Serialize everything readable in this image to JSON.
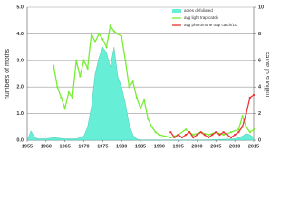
{
  "chart_data": {
    "type": "line",
    "y_label": "numbers of moths",
    "y2_label": "millions of acres",
    "xlim": [
      1955,
      2015
    ],
    "xticks": [
      1955,
      1960,
      1965,
      1970,
      1975,
      1980,
      1985,
      1990,
      1995,
      2000,
      2005,
      2010,
      2015
    ],
    "ylim": [
      0,
      5
    ],
    "yticks": [
      {
        "value": 0,
        "label": "0.0"
      },
      {
        "value": 1,
        "label": "1.0"
      },
      {
        "value": 2,
        "label": "2.0"
      },
      {
        "value": 3,
        "label": "3.0"
      },
      {
        "value": 4,
        "label": "4.0"
      },
      {
        "value": 5,
        "label": "5.0"
      }
    ],
    "y2lim": [
      0,
      10
    ],
    "y2ticks": [
      0,
      2,
      4,
      6,
      8,
      10
    ],
    "grid": true,
    "legend": "upper right",
    "series": [
      {
        "name": "acres defoliated",
        "color": "#66eed6",
        "kind": "area",
        "axis": "y2",
        "x": [
          1955,
          1956,
          1957,
          1958,
          1960,
          1962,
          1965,
          1968,
          1970,
          1971,
          1972,
          1973,
          1974,
          1975,
          1976,
          1977,
          1978,
          1979,
          1980,
          1981,
          1982,
          1983,
          1984,
          1985,
          1990,
          2000,
          2010,
          2012,
          2013,
          2014,
          2015
        ],
        "values": [
          0,
          0.7,
          0.2,
          0.1,
          0.1,
          0.2,
          0.1,
          0.1,
          0.3,
          1.0,
          2.5,
          5.0,
          6.2,
          7.0,
          6.6,
          5.5,
          7.0,
          4.8,
          4.0,
          2.8,
          1.2,
          0.4,
          0.1,
          0,
          0,
          0,
          0.1,
          0.3,
          0.5,
          0.4,
          0.2
        ]
      },
      {
        "name": "avg light trap catch",
        "color": "#77ee33",
        "kind": "line",
        "x": [
          1962,
          1963,
          1964,
          1965,
          1966,
          1967,
          1968,
          1969,
          1970,
          1971,
          1972,
          1973,
          1974,
          1975,
          1976,
          1977,
          1978,
          1979,
          1980,
          1981,
          1982,
          1983,
          1984,
          1985,
          1986,
          1987,
          1988,
          1989,
          1990,
          1993,
          1995,
          1997,
          1999,
          2001,
          2003,
          2005,
          2007,
          2009,
          2011,
          2012,
          2013,
          2014,
          2015
        ],
        "values": [
          2.8,
          2.0,
          1.6,
          1.2,
          1.8,
          1.6,
          3.0,
          2.4,
          3.0,
          2.7,
          4.0,
          3.7,
          4.0,
          3.8,
          3.5,
          4.3,
          4.1,
          4.0,
          3.9,
          3.0,
          2.0,
          2.2,
          1.6,
          1.2,
          1.5,
          0.8,
          0.5,
          0.3,
          0.2,
          0.1,
          0.2,
          0.4,
          0.2,
          0.3,
          0.2,
          0.3,
          0.2,
          0.3,
          0.4,
          0.9,
          0.5,
          0.3,
          0.4
        ]
      },
      {
        "name": "avg pheromone trap catch/10",
        "color": "#ee3333",
        "kind": "line",
        "x": [
          1993,
          1994,
          1995,
          1996,
          1997,
          1998,
          1999,
          2000,
          2001,
          2002,
          2003,
          2004,
          2005,
          2006,
          2007,
          2008,
          2009,
          2010,
          2011,
          2012,
          2013,
          2014,
          2015
        ],
        "values": [
          0.3,
          0.1,
          0.2,
          0.1,
          0.2,
          0.3,
          0.1,
          0.2,
          0.3,
          0.2,
          0.1,
          0.2,
          0.3,
          0.2,
          0.3,
          0.2,
          0.1,
          0.2,
          0.3,
          0.5,
          1.0,
          1.6,
          1.7
        ]
      }
    ]
  }
}
